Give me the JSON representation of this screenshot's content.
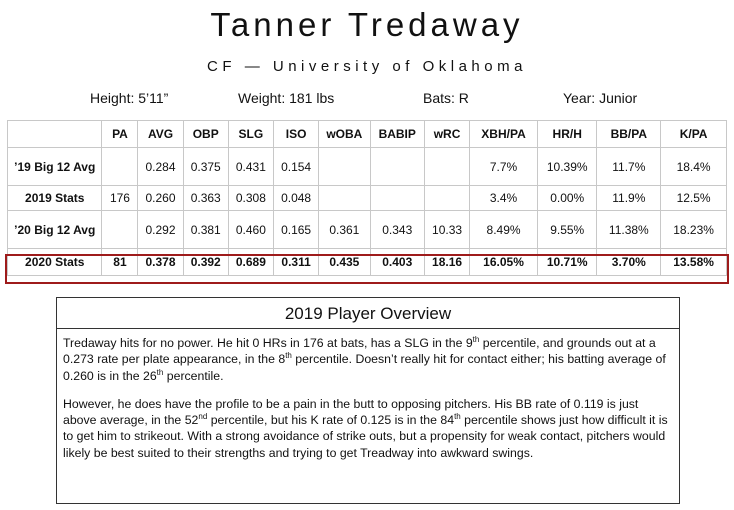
{
  "header": {
    "name": "Tanner Tredaway",
    "position_school": "CF — University of Oklahoma"
  },
  "bio": {
    "height": "Height: 5’11”",
    "weight": "Weight: 181 lbs",
    "bats": "Bats: R",
    "year": "Year: Junior"
  },
  "stats_table": {
    "columns": [
      "",
      "PA",
      "AVG",
      "OBP",
      "SLG",
      "ISO",
      "wOBA",
      "BABIP",
      "wRC",
      "XBH/PA",
      "HR/H",
      "BB/PA",
      "K/PA"
    ],
    "rows": [
      {
        "label": "’19 Big 12 Avg",
        "cells": [
          "",
          "0.284",
          "0.375",
          "0.431",
          "0.154",
          "",
          "",
          "",
          "7.7%",
          "10.39%",
          "11.7%",
          "18.4%"
        ]
      },
      {
        "label": "2019 Stats",
        "cells": [
          "176",
          "0.260",
          "0.363",
          "0.308",
          "0.048",
          "",
          "",
          "",
          "3.4%",
          "0.00%",
          "11.9%",
          "12.5%"
        ]
      },
      {
        "label": "’20 Big 12 Avg",
        "cells": [
          "",
          "0.292",
          "0.381",
          "0.460",
          "0.165",
          "0.361",
          "0.343",
          "10.33",
          "8.49%",
          "9.55%",
          "11.38%",
          "18.23%"
        ]
      },
      {
        "label": "2020 Stats",
        "cells": [
          "81",
          "0.378",
          "0.392",
          "0.689",
          "0.311",
          "0.435",
          "0.403",
          "18.16",
          "16.05%",
          "10.71%",
          "3.70%",
          "13.58%"
        ]
      }
    ]
  },
  "overview": {
    "title": "2019 Player Overview",
    "p1": {
      "a": "Tredaway hits for no power. He hit 0 HRs in 176 at bats, has a SLG in the 9",
      "sup1": "th",
      "b": " percentile, and grounds out at a 0.273 rate per plate appearance, in the 8",
      "sup2": "th",
      "c": " percentile. Doesn’t really hit for contact either; his batting average of 0.260 is in the 26",
      "sup3": "th",
      "d": " percentile."
    },
    "p2": {
      "a": "However, he does have the profile to be a pain in the butt to opposing pitchers. His BB rate of 0.119 is just above average, in the 52",
      "sup1": "nd",
      "b": " percentile, but his K rate of 0.125 is in the 84",
      "sup2": "th",
      "c": " percentile shows just how difficult it is to get him to strikeout. With a strong avoidance of strike outs, but a propensity for weak contact, pitchers would likely be best suited to their strengths and trying to get Treadway into awkward swings."
    }
  },
  "colors": {
    "highlight_border": "#9e1b1b",
    "grid": "#c8c8c8"
  }
}
